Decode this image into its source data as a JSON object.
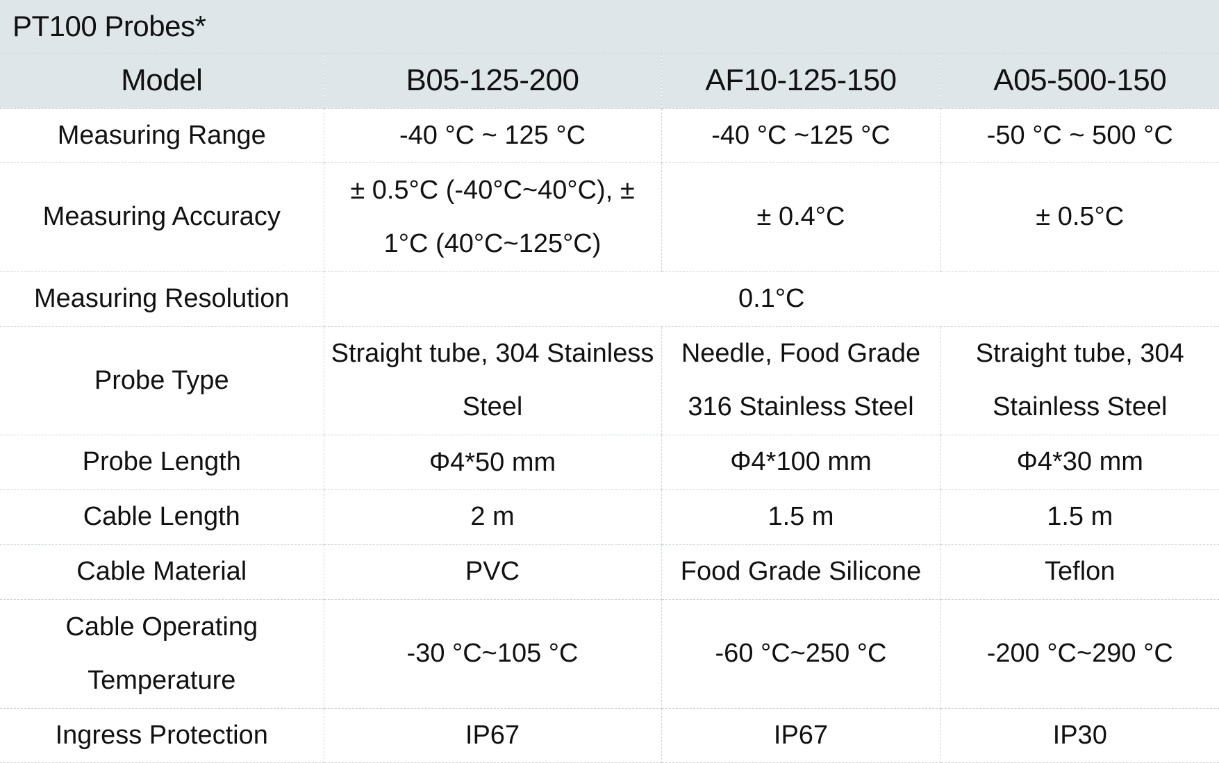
{
  "title": "PT100 Probes*",
  "header": {
    "label": "Model",
    "models": [
      "B05-125-200",
      "AF10-125-150",
      "A05-500-150"
    ]
  },
  "rows": [
    {
      "label": "Measuring Range",
      "values": [
        "-40 °C ~ 125 °C",
        "-40 °C ~125 °C",
        "-50 °C ~ 500 °C"
      ]
    },
    {
      "label": "Measuring Accuracy",
      "values": [
        "± 0.5°C (-40°C~40°C), ± 1°C (40°C~125°C)",
        "± 0.4°C",
        "± 0.5°C"
      ]
    },
    {
      "label": "Measuring Resolution",
      "merged_value": "0.1°C"
    },
    {
      "label": "Probe Type",
      "values": [
        "Straight tube, 304 Stainless Steel",
        "Needle, Food Grade 316 Stainless Steel",
        "Straight tube, 304 Stainless Steel"
      ]
    },
    {
      "label": "Probe Length",
      "values": [
        "Φ4*50 mm",
        "Φ4*100 mm",
        "Φ4*30 mm"
      ]
    },
    {
      "label": "Cable Length",
      "values": [
        "2 m",
        "1.5 m",
        "1.5 m"
      ]
    },
    {
      "label": "Cable Material",
      "values": [
        "PVC",
        "Food Grade Silicone",
        "Teflon"
      ]
    },
    {
      "label": "Cable Operating Temperature",
      "values": [
        "-30 °C~105 °C",
        "-60 °C~250 °C",
        "-200 °C~290 °C"
      ]
    },
    {
      "label": "Ingress Protection",
      "values": [
        "IP67",
        "IP67",
        "IP30"
      ]
    }
  ]
}
